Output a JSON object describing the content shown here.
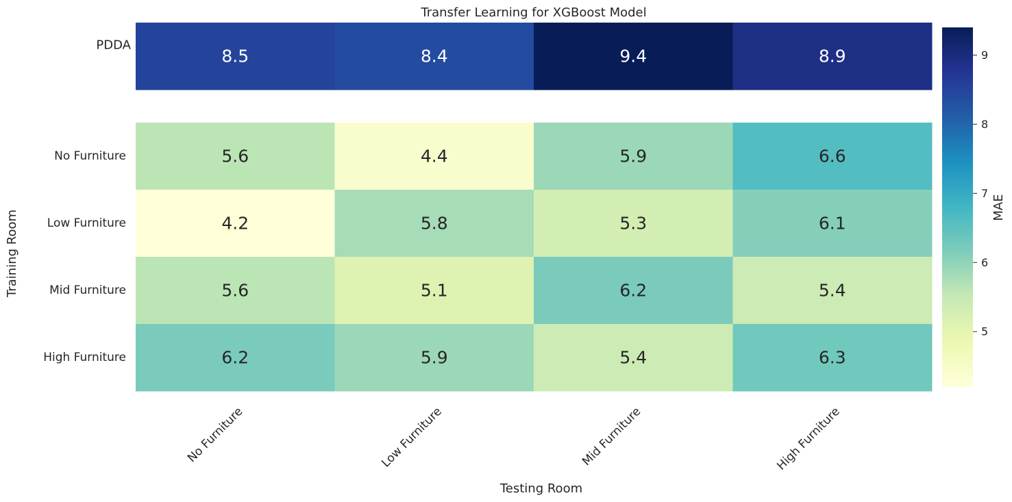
{
  "chart_data": [
    {
      "type": "heatmap",
      "title": "Transfer Learning for XGBoost Model",
      "xlabel": "",
      "ylabel": "",
      "x_categories": [
        "No Furniture",
        "Low Furniture",
        "Mid Furniture",
        "High Furniture"
      ],
      "y_categories": [
        "PDDA"
      ],
      "values": [
        [
          8.5,
          8.4,
          9.4,
          8.9
        ]
      ],
      "vmin": 4.2,
      "vmax": 9.4,
      "x_tick_labels_shown": false
    },
    {
      "type": "heatmap",
      "title": "",
      "xlabel": "Testing Room",
      "ylabel": "Training Room",
      "x_categories": [
        "No Furniture",
        "Low Furniture",
        "Mid Furniture",
        "High Furniture"
      ],
      "y_categories": [
        "No Furniture",
        "Low Furniture",
        "Mid Furniture",
        "High Furniture"
      ],
      "values": [
        [
          5.6,
          4.4,
          5.9,
          6.6
        ],
        [
          4.2,
          5.8,
          5.3,
          6.1
        ],
        [
          5.6,
          5.1,
          6.2,
          5.4
        ],
        [
          6.2,
          5.9,
          5.4,
          6.3
        ]
      ],
      "vmin": 4.2,
      "vmax": 9.4,
      "x_tick_labels_shown": true
    }
  ],
  "colorbar": {
    "label": "MAE",
    "colormap": "YlGnBu",
    "vmin": 4.2,
    "vmax": 9.4,
    "ticks": [
      5,
      6,
      7,
      8,
      9
    ]
  }
}
